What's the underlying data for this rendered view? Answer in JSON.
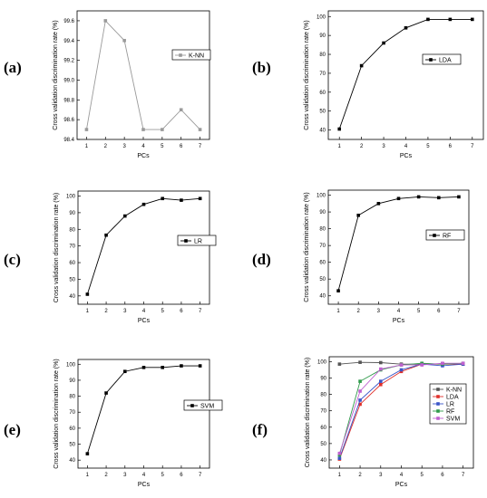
{
  "chart_data": [
    {
      "panel": "(a)",
      "type": "line",
      "x": [
        1,
        2,
        3,
        4,
        5,
        6,
        7
      ],
      "series": [
        {
          "name": "K-NN",
          "values": [
            98.5,
            99.6,
            99.4,
            98.5,
            98.5,
            98.7,
            98.5
          ],
          "color": "#9a9a9a"
        }
      ],
      "xlabel": "PCs",
      "ylabel": "Cross validation discrimination rate (%)",
      "ylim": [
        98.4,
        99.7
      ],
      "yticks": [
        98.4,
        98.6,
        98.8,
        99.0,
        99.2,
        99.4,
        99.6
      ],
      "ytick_labels": [
        "98.4",
        "98.6",
        "98.8",
        "99.0",
        "99.2",
        "99.4",
        "99.6"
      ],
      "legend": "right"
    },
    {
      "panel": "(b)",
      "type": "line",
      "x": [
        1,
        2,
        3,
        4,
        5,
        6,
        7
      ],
      "series": [
        {
          "name": "LDA",
          "values": [
            40.5,
            74,
            86,
            94,
            98.5,
            98.5,
            98.5
          ],
          "color": "#000000"
        }
      ],
      "xlabel": "PCs",
      "ylabel": "Cross validation discrimination rate (%)",
      "ylim": [
        35,
        103
      ],
      "yticks": [
        40,
        50,
        60,
        70,
        80,
        90,
        100
      ],
      "ytick_labels": [
        "40",
        "50",
        "60",
        "70",
        "80",
        "90",
        "100"
      ],
      "legend": "right"
    },
    {
      "panel": "(c)",
      "type": "line",
      "x": [
        1,
        2,
        3,
        4,
        5,
        6,
        7
      ],
      "series": [
        {
          "name": "LR",
          "values": [
            41,
            76.5,
            88,
            95,
            98.5,
            97.5,
            98.5
          ],
          "color": "#000000"
        }
      ],
      "xlabel": "PCs",
      "ylabel": "Cross validation discrimination rate (%)",
      "ylim": [
        35,
        103
      ],
      "yticks": [
        40,
        50,
        60,
        70,
        80,
        90,
        100
      ],
      "ytick_labels": [
        "40",
        "50",
        "60",
        "70",
        "80",
        "90",
        "100"
      ],
      "legend": "right"
    },
    {
      "panel": "(d)",
      "type": "line",
      "x": [
        1,
        2,
        3,
        4,
        5,
        6,
        7
      ],
      "series": [
        {
          "name": "RF",
          "values": [
            43,
            88,
            95,
            98,
            99,
            98.5,
            99
          ],
          "color": "#000000"
        }
      ],
      "xlabel": "PCs",
      "ylabel": "Cross validation discrimination rate (%)",
      "ylim": [
        35,
        103
      ],
      "yticks": [
        40,
        50,
        60,
        70,
        80,
        90,
        100
      ],
      "ytick_labels": [
        "40",
        "50",
        "60",
        "70",
        "80",
        "90",
        "100"
      ],
      "legend": "right"
    },
    {
      "panel": "(e)",
      "type": "line",
      "x": [
        1,
        2,
        3,
        4,
        5,
        6,
        7
      ],
      "series": [
        {
          "name": "SVM",
          "values": [
            44,
            82,
            95.5,
            98,
            98,
            99,
            99
          ],
          "color": "#000000"
        }
      ],
      "xlabel": "PCs",
      "ylabel": "Cross validation discrimination rate (%)",
      "ylim": [
        35,
        103
      ],
      "yticks": [
        40,
        50,
        60,
        70,
        80,
        90,
        100
      ],
      "ytick_labels": [
        "40",
        "50",
        "60",
        "70",
        "80",
        "90",
        "100"
      ],
      "legend": "right"
    },
    {
      "panel": "(f)",
      "type": "line",
      "x": [
        1,
        2,
        3,
        4,
        5,
        6,
        7
      ],
      "series": [
        {
          "name": "K-NN",
          "values": [
            98.5,
            99.6,
            99.4,
            98.5,
            98.5,
            98.7,
            98.5
          ],
          "color": "#555555"
        },
        {
          "name": "LDA",
          "values": [
            40.5,
            74,
            86,
            94,
            98.5,
            98.5,
            98.5
          ],
          "color": "#e0302a"
        },
        {
          "name": "LR",
          "values": [
            41,
            76.5,
            88,
            95,
            98.5,
            97.5,
            98.5
          ],
          "color": "#3a55c8"
        },
        {
          "name": "RF",
          "values": [
            43,
            88,
            95,
            98,
            99,
            98.5,
            99
          ],
          "color": "#2f9a4a"
        },
        {
          "name": "SVM",
          "values": [
            44,
            82,
            95.5,
            98,
            98,
            99,
            99
          ],
          "color": "#c060d0"
        }
      ],
      "xlabel": "PCs",
      "ylabel": "Cross validation discrimination rate (%)",
      "ylim": [
        35,
        103
      ],
      "yticks": [
        40,
        50,
        60,
        70,
        80,
        90,
        100
      ],
      "ytick_labels": [
        "40",
        "50",
        "60",
        "70",
        "80",
        "90",
        "100"
      ],
      "legend": "right"
    }
  ]
}
